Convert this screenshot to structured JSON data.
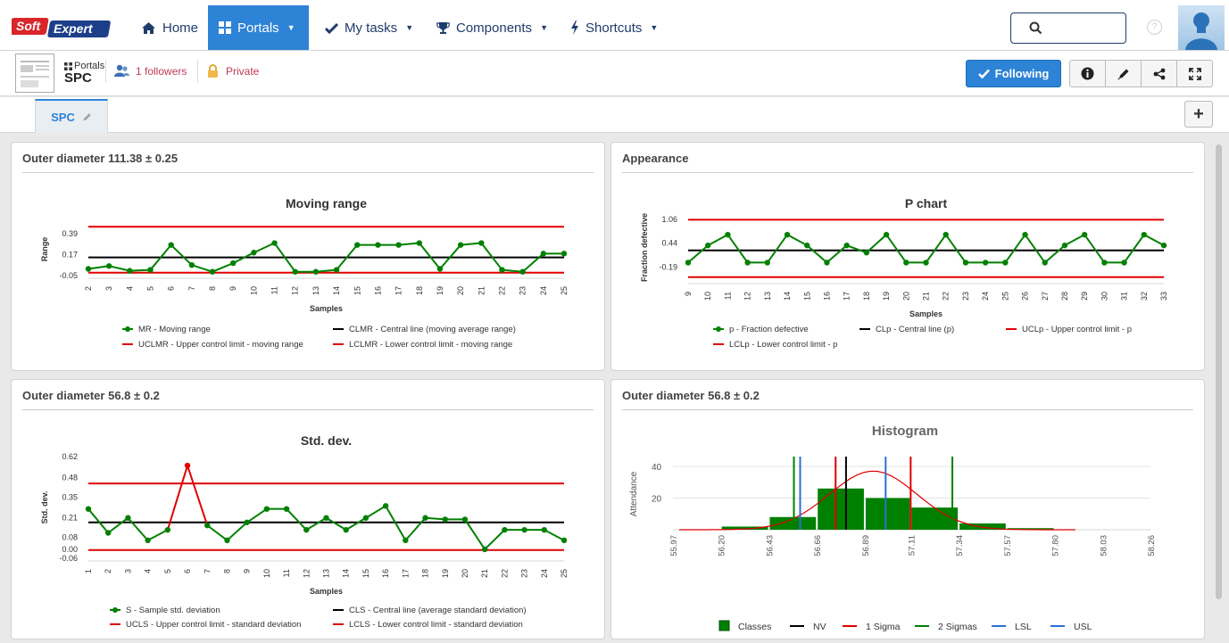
{
  "app": {
    "logo_text_1": "Soft",
    "logo_text_2": "Expert"
  },
  "nav": {
    "home": "Home",
    "portals": "Portals",
    "my_tasks": "My tasks",
    "components": "Components",
    "shortcuts": "Shortcuts"
  },
  "header": {
    "help": "?",
    "breadcrumb_small": "Portals",
    "title": "SPC",
    "followers": "1 followers",
    "privacy": "Private",
    "follow_button": "Following"
  },
  "tabs": [
    {
      "label": "SPC"
    }
  ],
  "colors": {
    "accent": "#2d83d6",
    "series_green": "#008000",
    "limit_red": "#e00000",
    "center_black": "#000000"
  },
  "panels": [
    {
      "title": "Outer diameter 111.38 ± 0.25"
    },
    {
      "title": "Appearance"
    },
    {
      "title": "Outer diameter 56.8 ± 0.2"
    },
    {
      "title": "Outer diameter 56.8 ± 0.2"
    }
  ],
  "chart_data": [
    {
      "type": "line",
      "title": "Moving range",
      "xlabel": "Samples",
      "ylabel": "Range",
      "x": [
        2,
        3,
        4,
        5,
        6,
        7,
        8,
        9,
        10,
        11,
        12,
        13,
        14,
        15,
        16,
        17,
        18,
        19,
        20,
        21,
        22,
        23,
        24,
        25
      ],
      "yticks": [
        "-0.05",
        "0.17",
        "0.39"
      ],
      "ylim": [
        -0.05,
        0.5
      ],
      "series": [
        {
          "name": "MR - Moving range",
          "color": "#008000",
          "values": [
            0.02,
            0.05,
            0.0,
            0.01,
            0.27,
            0.06,
            -0.01,
            0.08,
            0.19,
            0.29,
            -0.01,
            -0.01,
            0.01,
            0.27,
            0.27,
            0.27,
            0.29,
            0.02,
            0.27,
            0.29,
            0.01,
            -0.01,
            0.18,
            0.18
          ]
        },
        {
          "name": "CLMR - Central line (moving average range)",
          "color": "#000000",
          "constant": 0.14
        },
        {
          "name": "UCLMR - Upper control limit - moving range",
          "color": "#e00000",
          "constant": 0.46
        },
        {
          "name": "LCLMR - Lower control limit - moving range",
          "color": "#e00000",
          "constant": -0.02
        }
      ],
      "legend_position": "bottom"
    },
    {
      "type": "line",
      "title": "P chart",
      "xlabel": "Samples",
      "ylabel": "Fraction defective",
      "x": [
        9,
        10,
        11,
        12,
        13,
        14,
        15,
        16,
        17,
        18,
        19,
        20,
        21,
        22,
        23,
        24,
        25,
        26,
        27,
        28,
        29,
        30,
        31,
        32,
        33
      ],
      "yticks": [
        "-0.19",
        "0.44",
        "1.06"
      ],
      "ylim": [
        -0.55,
        1.2
      ],
      "series": [
        {
          "name": "p - Fraction defective",
          "color": "#008000",
          "values": [
            -0.07,
            0.38,
            0.66,
            -0.07,
            -0.07,
            0.66,
            0.38,
            -0.07,
            0.38,
            0.19,
            0.66,
            -0.07,
            -0.07,
            0.66,
            -0.07,
            -0.07,
            -0.07,
            0.66,
            -0.07,
            0.38,
            0.66,
            -0.07,
            -0.07,
            0.66,
            0.38
          ]
        },
        {
          "name": "CLp - Central line (p)",
          "color": "#000000",
          "constant": 0.25
        },
        {
          "name": "UCLp - Upper control limit - p",
          "color": "#e00000",
          "constant": 1.05
        },
        {
          "name": "LCLp - Lower control limit - p",
          "color": "#e00000",
          "constant": -0.45
        }
      ],
      "legend_position": "bottom"
    },
    {
      "type": "line",
      "title": "Std. dev.",
      "xlabel": "Samples",
      "ylabel": "Std. dev.",
      "x": [
        1,
        2,
        3,
        4,
        5,
        6,
        7,
        8,
        9,
        10,
        11,
        12,
        13,
        14,
        15,
        16,
        17,
        18,
        19,
        20,
        21,
        22,
        23,
        24,
        25
      ],
      "yticks": [
        "-0.06",
        "0.00",
        "0.08",
        "0.21",
        "0.35",
        "0.48",
        "0.62"
      ],
      "ylim": [
        -0.06,
        0.62
      ],
      "series": [
        {
          "name": "S - Sample std. deviation",
          "color": "#008000",
          "values": [
            0.27,
            0.11,
            0.21,
            0.06,
            0.13,
            0.56,
            0.16,
            0.06,
            0.18,
            0.27,
            0.27,
            0.13,
            0.21,
            0.13,
            0.21,
            0.29,
            0.06,
            0.21,
            0.2,
            0.2,
            0.0,
            0.13,
            0.13,
            0.13,
            0.06
          ]
        },
        {
          "name": "CLS - Central line (average standard deviation)",
          "color": "#000000",
          "constant": 0.18
        },
        {
          "name": "UCLS - Upper control limit - standard deviation",
          "color": "#e00000",
          "constant": 0.44
        },
        {
          "name": "LCLS - Lower control limit - standard deviation",
          "color": "#e00000",
          "constant": -0.005
        }
      ],
      "out_of_control_point": 6,
      "legend_position": "bottom"
    },
    {
      "type": "bar",
      "title": "Histogram",
      "ylabel": "Attendance",
      "xticks": [
        "55.97",
        "56.20",
        "56.43",
        "56.66",
        "56.89",
        "57.11",
        "57.34",
        "57.57",
        "57.80",
        "58.03",
        "58.26"
      ],
      "yticks": [
        20,
        40
      ],
      "ylim": [
        0,
        45
      ],
      "xlim": [
        55.97,
        58.26
      ],
      "bins": [
        {
          "from": 56.2,
          "to": 56.43,
          "value": 2
        },
        {
          "from": 56.43,
          "to": 56.66,
          "value": 8
        },
        {
          "from": 56.66,
          "to": 56.89,
          "value": 26
        },
        {
          "from": 56.89,
          "to": 57.11,
          "value": 20
        },
        {
          "from": 57.11,
          "to": 57.34,
          "value": 14
        },
        {
          "from": 57.34,
          "to": 57.57,
          "value": 4
        },
        {
          "from": 57.57,
          "to": 57.8,
          "value": 1
        }
      ],
      "reference_lines": [
        {
          "name": "NV",
          "color": "#000000",
          "x": 56.8
        },
        {
          "name": "1 Sigma",
          "color": "#e00000",
          "x": 56.75
        },
        {
          "name": "1 Sigma",
          "color": "#e00000",
          "x": 57.11
        },
        {
          "name": "2 Sigmas",
          "color": "#008000",
          "x": 56.55
        },
        {
          "name": "2 Sigmas",
          "color": "#008000",
          "x": 57.31
        },
        {
          "name": "LSL",
          "color": "#2d6fd6",
          "x": 56.58
        },
        {
          "name": "USL",
          "color": "#2d6fd6",
          "x": 56.99
        }
      ],
      "normal_curve": {
        "color": "#e00000",
        "mean": 56.93,
        "peak": 37
      },
      "legend": [
        "Classes",
        "NV",
        "1 Sigma",
        "2 Sigmas",
        "LSL",
        "USL"
      ],
      "legend_position": "bottom"
    }
  ]
}
